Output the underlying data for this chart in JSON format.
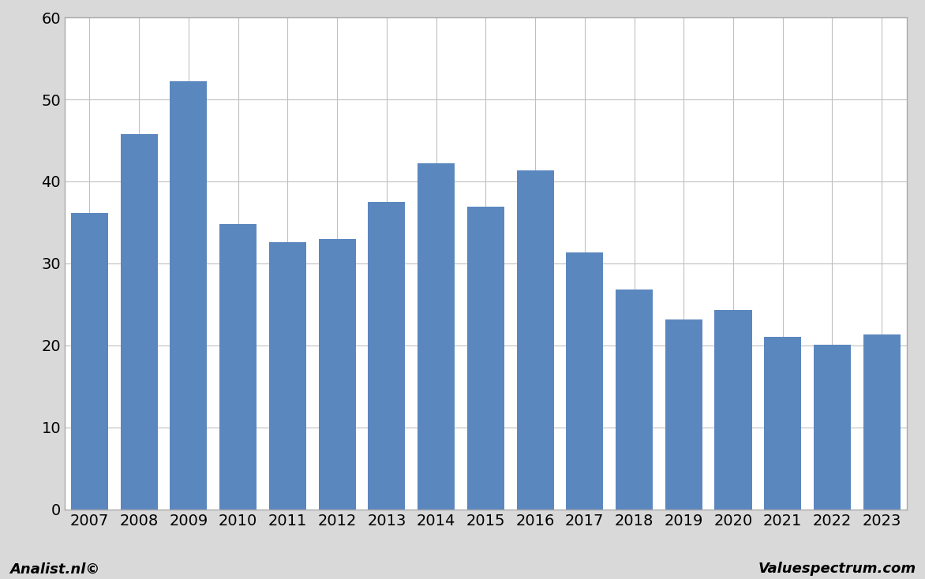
{
  "categories": [
    "2007",
    "2008",
    "2009",
    "2010",
    "2011",
    "2012",
    "2013",
    "2014",
    "2015",
    "2016",
    "2017",
    "2018",
    "2019",
    "2020",
    "2021",
    "2022",
    "2023"
  ],
  "values": [
    36.2,
    45.8,
    52.2,
    34.8,
    32.6,
    33.0,
    37.5,
    42.2,
    36.9,
    41.3,
    31.3,
    26.8,
    23.2,
    24.3,
    21.1,
    20.1,
    21.3
  ],
  "bar_color": "#5b87bf",
  "ylim": [
    0,
    60
  ],
  "yticks": [
    0,
    10,
    20,
    30,
    40,
    50,
    60
  ],
  "figure_bg_color": "#d9d9d9",
  "plot_bg_color": "#ffffff",
  "grid_color": "#c0c0c0",
  "footer_left": "Analist.nl©",
  "footer_right": "Valuespectrum.com",
  "border_color": "#aaaaaa",
  "tick_fontsize": 14,
  "footer_fontsize": 13
}
